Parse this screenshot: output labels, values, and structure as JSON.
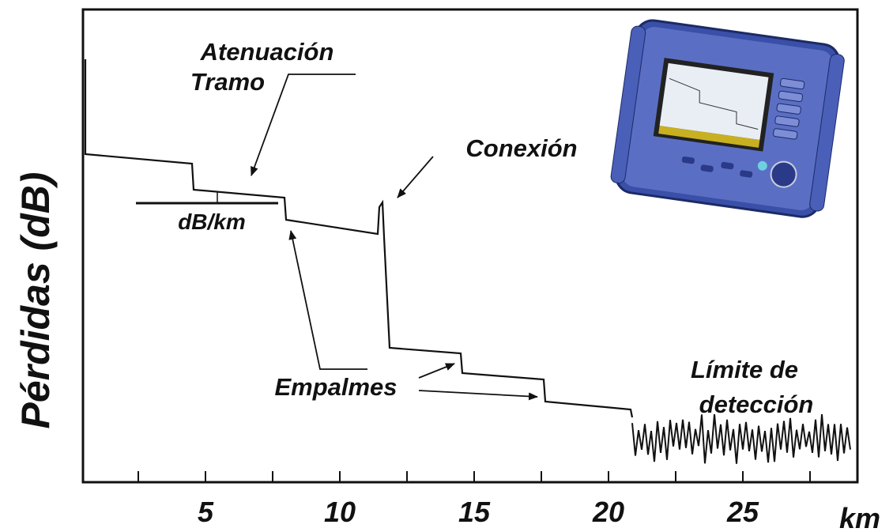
{
  "y_axis_label": "Pérdidas (dB)",
  "x_axis": {
    "tick_labels": [
      "5",
      "10",
      "15",
      "20",
      "25"
    ],
    "unit": "km"
  },
  "annotations": {
    "span_attenuation": [
      "Atenuación",
      "Tramo"
    ],
    "slope": "dB/km",
    "connection": "Conexión",
    "splices": "Empalmes",
    "detection_limit": [
      "Límite de",
      "detección"
    ]
  }
}
